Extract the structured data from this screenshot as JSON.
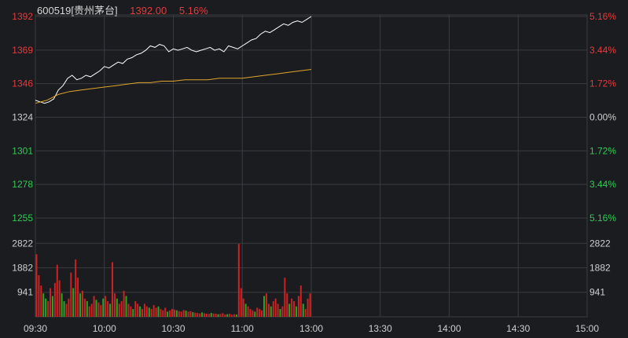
{
  "header": {
    "code": "600519",
    "name": "[贵州茅台]",
    "price": "1392.00",
    "change_pct": "5.16%"
  },
  "colors": {
    "background": "#1b1c20",
    "grid": "#3a3b40",
    "up": "#e83a3a",
    "down": "#2ecc52",
    "neutral": "#cfcfcf",
    "price_line": "#ffffff",
    "avg_line": "#e0a52a",
    "volume_up": "#cc2222",
    "volume_down": "#22aa22"
  },
  "chart_data": {
    "type": "line",
    "price_axis": {
      "ticks": [
        "1392",
        "1369",
        "1346",
        "1324",
        "1301",
        "1278",
        "1255"
      ],
      "ylim": [
        1255,
        1392
      ],
      "prev_close": 1324
    },
    "pct_axis": {
      "ticks": [
        "5.16%",
        "3.44%",
        "1.72%",
        "0.00%",
        "1.72%",
        "3.44%",
        "5.16%"
      ]
    },
    "volume_axis": {
      "ticks": [
        "2822",
        "1882",
        "941"
      ],
      "ylim": [
        0,
        3763
      ]
    },
    "time_axis": {
      "ticks": [
        "09:30",
        "10:00",
        "10:30",
        "11:00",
        "13:00",
        "13:30",
        "14:00",
        "14:30",
        "15:00"
      ]
    },
    "series": [
      {
        "kind": "price",
        "points": [
          [
            0,
            1335
          ],
          [
            2,
            1334
          ],
          [
            4,
            1333
          ],
          [
            6,
            1334
          ],
          [
            8,
            1336
          ],
          [
            10,
            1342
          ],
          [
            12,
            1345
          ],
          [
            14,
            1350
          ],
          [
            16,
            1352
          ],
          [
            18,
            1349
          ],
          [
            20,
            1350
          ],
          [
            22,
            1352
          ],
          [
            24,
            1351
          ],
          [
            26,
            1353
          ],
          [
            28,
            1355
          ],
          [
            30,
            1358
          ],
          [
            32,
            1357
          ],
          [
            34,
            1359
          ],
          [
            36,
            1361
          ],
          [
            38,
            1360
          ],
          [
            40,
            1363
          ],
          [
            42,
            1364
          ],
          [
            44,
            1366
          ],
          [
            46,
            1367
          ],
          [
            48,
            1369
          ],
          [
            50,
            1372
          ],
          [
            52,
            1371
          ],
          [
            54,
            1373
          ],
          [
            56,
            1372
          ],
          [
            58,
            1368
          ],
          [
            60,
            1370
          ],
          [
            62,
            1369
          ],
          [
            64,
            1370
          ],
          [
            66,
            1371
          ],
          [
            68,
            1369
          ],
          [
            70,
            1368
          ],
          [
            72,
            1369
          ],
          [
            74,
            1370
          ],
          [
            76,
            1371
          ],
          [
            78,
            1369
          ],
          [
            80,
            1370
          ],
          [
            82,
            1368
          ],
          [
            84,
            1372
          ],
          [
            86,
            1371
          ],
          [
            88,
            1370
          ],
          [
            90,
            1372
          ],
          [
            92,
            1374
          ],
          [
            94,
            1376
          ],
          [
            96,
            1377
          ],
          [
            98,
            1380
          ],
          [
            100,
            1382
          ],
          [
            102,
            1381
          ],
          [
            104,
            1383
          ],
          [
            106,
            1385
          ],
          [
            108,
            1387
          ],
          [
            110,
            1386
          ],
          [
            112,
            1388
          ],
          [
            114,
            1389
          ],
          [
            116,
            1388
          ],
          [
            118,
            1390
          ],
          [
            120,
            1392
          ]
        ]
      },
      {
        "kind": "average",
        "points": [
          [
            0,
            1333
          ],
          [
            5,
            1335
          ],
          [
            10,
            1339
          ],
          [
            15,
            1341
          ],
          [
            20,
            1342
          ],
          [
            25,
            1343
          ],
          [
            30,
            1344
          ],
          [
            35,
            1345
          ],
          [
            40,
            1346
          ],
          [
            45,
            1347
          ],
          [
            50,
            1347
          ],
          [
            55,
            1348
          ],
          [
            60,
            1348
          ],
          [
            65,
            1349
          ],
          [
            70,
            1349
          ],
          [
            75,
            1349
          ],
          [
            80,
            1350
          ],
          [
            85,
            1350
          ],
          [
            90,
            1350
          ],
          [
            95,
            1351
          ],
          [
            100,
            1352
          ],
          [
            105,
            1353
          ],
          [
            110,
            1354
          ],
          [
            115,
            1355
          ],
          [
            120,
            1356
          ]
        ]
      }
    ],
    "volume": [
      [
        2400,
        1
      ],
      [
        1600,
        1
      ],
      [
        1200,
        1
      ],
      [
        900,
        0
      ],
      [
        700,
        0
      ],
      [
        600,
        1
      ],
      [
        1100,
        1
      ],
      [
        800,
        0
      ],
      [
        1300,
        1
      ],
      [
        2000,
        1
      ],
      [
        1400,
        1
      ],
      [
        900,
        0
      ],
      [
        600,
        0
      ],
      [
        500,
        1
      ],
      [
        700,
        1
      ],
      [
        1700,
        1
      ],
      [
        1100,
        0
      ],
      [
        2200,
        1
      ],
      [
        1500,
        1
      ],
      [
        900,
        0
      ],
      [
        1000,
        1
      ],
      [
        700,
        1
      ],
      [
        600,
        0
      ],
      [
        400,
        1
      ],
      [
        500,
        1
      ],
      [
        800,
        1
      ],
      [
        650,
        0
      ],
      [
        550,
        1
      ],
      [
        450,
        1
      ],
      [
        700,
        0
      ],
      [
        800,
        1
      ],
      [
        600,
        1
      ],
      [
        500,
        0
      ],
      [
        2100,
        1
      ],
      [
        900,
        1
      ],
      [
        700,
        0
      ],
      [
        500,
        1
      ],
      [
        600,
        1
      ],
      [
        1000,
        1
      ],
      [
        800,
        0
      ],
      [
        500,
        1
      ],
      [
        400,
        1
      ],
      [
        300,
        0
      ],
      [
        600,
        1
      ],
      [
        500,
        1
      ],
      [
        400,
        0
      ],
      [
        300,
        1
      ],
      [
        500,
        1
      ],
      [
        400,
        1
      ],
      [
        350,
        0
      ],
      [
        300,
        1
      ],
      [
        450,
        1
      ],
      [
        350,
        1
      ],
      [
        400,
        0
      ],
      [
        300,
        1
      ],
      [
        250,
        1
      ],
      [
        350,
        1
      ],
      [
        200,
        0
      ],
      [
        250,
        1
      ],
      [
        300,
        1
      ],
      [
        280,
        1
      ],
      [
        250,
        0
      ],
      [
        220,
        1
      ],
      [
        200,
        1
      ],
      [
        260,
        1
      ],
      [
        240,
        0
      ],
      [
        200,
        1
      ],
      [
        220,
        1
      ],
      [
        180,
        0
      ],
      [
        160,
        1
      ],
      [
        150,
        1
      ],
      [
        130,
        1
      ],
      [
        170,
        0
      ],
      [
        140,
        1
      ],
      [
        120,
        1
      ],
      [
        110,
        1
      ],
      [
        150,
        0
      ],
      [
        130,
        1
      ],
      [
        120,
        1
      ],
      [
        100,
        0
      ],
      [
        110,
        1
      ],
      [
        140,
        1
      ],
      [
        90,
        1
      ],
      [
        100,
        0
      ],
      [
        120,
        1
      ],
      [
        80,
        1
      ],
      [
        100,
        1
      ],
      [
        90,
        0
      ],
      [
        2800,
        1
      ],
      [
        1100,
        1
      ],
      [
        700,
        1
      ],
      [
        500,
        0
      ],
      [
        400,
        1
      ],
      [
        300,
        1
      ],
      [
        250,
        1
      ],
      [
        200,
        0
      ],
      [
        350,
        1
      ],
      [
        300,
        1
      ],
      [
        250,
        1
      ],
      [
        800,
        0
      ],
      [
        900,
        1
      ],
      [
        500,
        1
      ],
      [
        400,
        0
      ],
      [
        600,
        1
      ],
      [
        700,
        1
      ],
      [
        500,
        1
      ],
      [
        300,
        0
      ],
      [
        400,
        1
      ],
      [
        1500,
        1
      ],
      [
        900,
        1
      ],
      [
        500,
        0
      ],
      [
        700,
        1
      ],
      [
        600,
        1
      ],
      [
        400,
        0
      ],
      [
        800,
        1
      ],
      [
        1200,
        1
      ],
      [
        500,
        0
      ],
      [
        300,
        1
      ],
      [
        700,
        1
      ],
      [
        900,
        1
      ]
    ]
  }
}
